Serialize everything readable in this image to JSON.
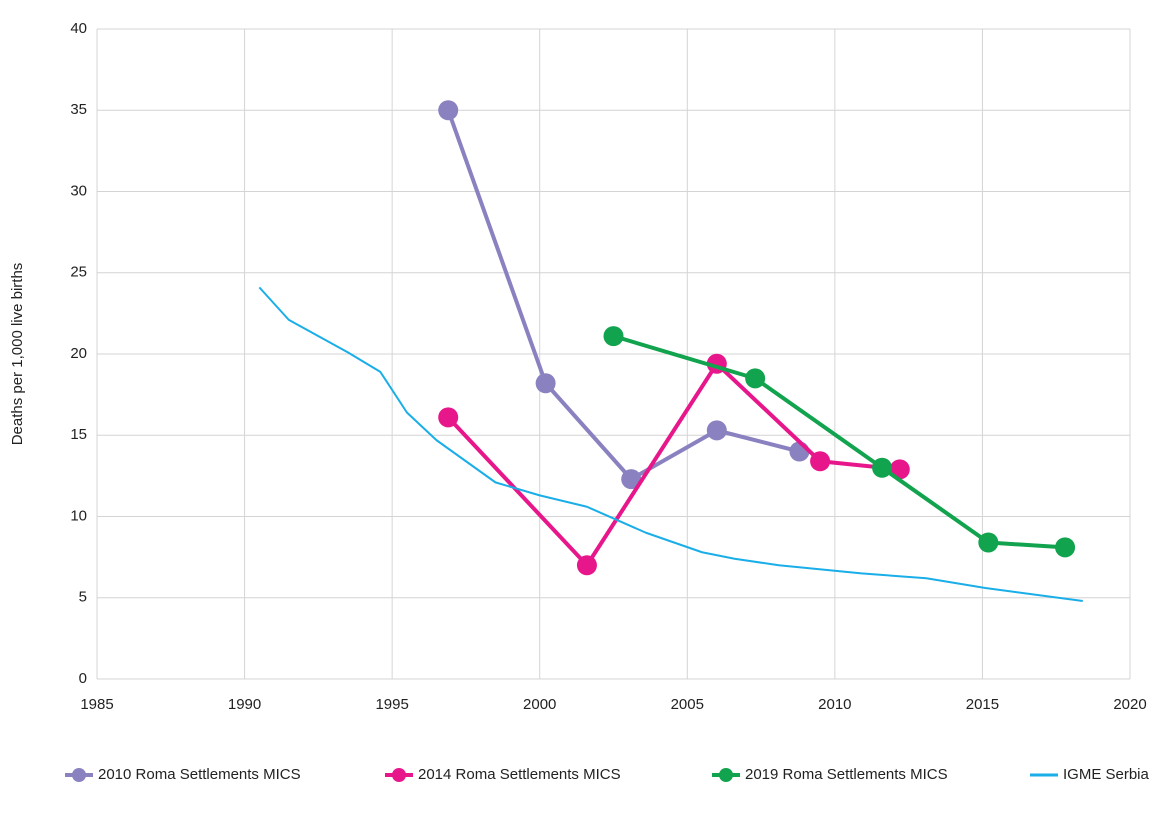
{
  "chart_data": {
    "type": "line",
    "ylabel": "Deaths per 1,000 live births",
    "xlim": [
      1985,
      2020
    ],
    "xticks": [
      1985,
      1990,
      1995,
      2000,
      2005,
      2010,
      2015,
      2020
    ],
    "ylim": [
      0,
      40
    ],
    "yticks": [
      0,
      5,
      10,
      15,
      20,
      25,
      30,
      35,
      40
    ],
    "grid": true,
    "legend": "bottom",
    "series": [
      {
        "name": "2010 Roma Settlements MICS",
        "color": "#8a82c0",
        "markers": true,
        "x": [
          1996.9,
          2000.2,
          2003.1,
          2006.0,
          2008.8
        ],
        "values": [
          35.0,
          18.2,
          12.3,
          15.3,
          14.0
        ]
      },
      {
        "name": "2014 Roma Settlements MICS",
        "color": "#e8168b",
        "markers": true,
        "x": [
          1996.9,
          2001.6,
          2006.0,
          2009.5,
          2012.2
        ],
        "values": [
          16.1,
          7.0,
          19.4,
          13.4,
          12.9
        ]
      },
      {
        "name": "2019 Roma Settlements MICS",
        "color": "#12a34f",
        "markers": true,
        "x": [
          2002.5,
          2007.3,
          2011.6,
          2015.2,
          2017.8
        ],
        "values": [
          21.1,
          18.5,
          13.0,
          8.4,
          8.1
        ]
      },
      {
        "name": "IGME Serbia",
        "color": "#1aaee8",
        "markers": false,
        "x": [
          1990.5,
          1991.5,
          1993.5,
          1994.6,
          1995.5,
          1996.5,
          1997.5,
          1998.5,
          2000.0,
          2001.6,
          2003.6,
          2005.5,
          2006.6,
          2008.1,
          2010.9,
          2013.1,
          2015.1,
          2018.4
        ],
        "values": [
          24.1,
          22.1,
          20.1,
          18.9,
          16.4,
          14.7,
          13.4,
          12.1,
          11.3,
          10.6,
          9.0,
          7.8,
          7.4,
          7.0,
          6.5,
          6.2,
          5.6,
          4.8
        ]
      }
    ]
  }
}
